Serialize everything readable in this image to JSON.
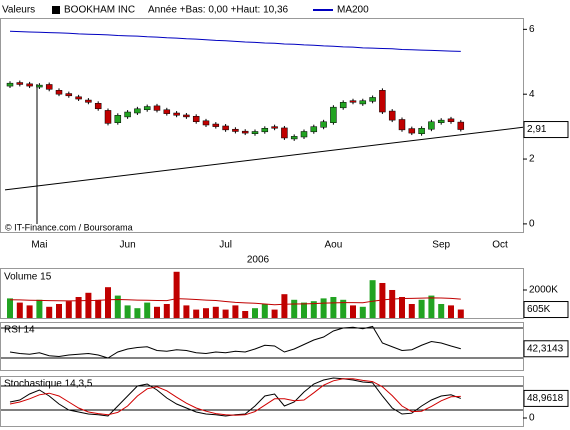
{
  "chart_data": [
    {
      "type": "candlestick",
      "label": "Valeurs",
      "title": "BOOKHAM INC",
      "subtitle": "Année +Bas: 0,00 +Haut: 10,36",
      "source": "© IT-Finance.com / Boursorama",
      "x_label": "2006",
      "categories": [
        null,
        null,
        null,
        "Mai",
        null,
        null,
        null,
        null,
        null,
        null,
        null,
        null,
        "Jun",
        null,
        null,
        null,
        null,
        null,
        null,
        null,
        null,
        null,
        "Jul",
        null,
        null,
        null,
        null,
        null,
        null,
        null,
        null,
        null,
        null,
        "Aou",
        null,
        null,
        null,
        null,
        null,
        null,
        null,
        null,
        null,
        null,
        "Sep",
        null,
        null,
        null,
        null,
        null,
        "Oct"
      ],
      "open": [
        4.25,
        4.36,
        4.32,
        4.22,
        4.3,
        4.12,
        4.02,
        3.92,
        3.82,
        3.72,
        3.5,
        3.12,
        3.3,
        3.42,
        3.52,
        3.64,
        3.52,
        3.42,
        3.36,
        3.32,
        3.18,
        3.08,
        3.02,
        2.92,
        2.86,
        2.78,
        2.84,
        3.0,
        2.96,
        2.62,
        2.68,
        2.84,
        2.98,
        3.12,
        3.58,
        3.8,
        3.7,
        3.78,
        4.12,
        3.48,
        3.22,
        2.94,
        2.78,
        2.92,
        3.12,
        3.24,
        3.14,
        null,
        null,
        null,
        null
      ],
      "high": [
        4.4,
        4.42,
        4.38,
        4.34,
        4.36,
        4.18,
        4.08,
        3.98,
        3.88,
        3.78,
        3.56,
        3.41,
        3.51,
        3.61,
        3.68,
        3.7,
        3.58,
        3.48,
        3.42,
        3.38,
        3.24,
        3.14,
        3.08,
        2.98,
        2.92,
        2.91,
        3.01,
        3.06,
        3.02,
        2.76,
        2.91,
        3.06,
        3.21,
        3.66,
        3.81,
        3.86,
        3.86,
        3.96,
        4.18,
        3.54,
        3.28,
        3.0,
        3.01,
        3.21,
        3.26,
        3.3,
        3.2,
        null,
        null,
        null,
        null
      ],
      "low": [
        4.19,
        4.24,
        4.19,
        4.16,
        4.09,
        3.94,
        3.89,
        3.79,
        3.69,
        3.49,
        3.04,
        3.06,
        3.24,
        3.36,
        3.46,
        3.44,
        3.34,
        3.29,
        3.24,
        3.09,
        2.99,
        2.94,
        2.84,
        2.79,
        2.74,
        2.72,
        2.78,
        2.89,
        2.59,
        2.56,
        2.62,
        2.78,
        2.92,
        3.06,
        3.52,
        3.69,
        3.64,
        3.72,
        3.39,
        3.14,
        2.84,
        2.74,
        2.72,
        2.86,
        3.06,
        3.09,
        2.85,
        null,
        null,
        null,
        null
      ],
      "close": [
        4.34,
        4.3,
        4.25,
        4.28,
        4.15,
        4.0,
        3.95,
        3.85,
        3.75,
        3.55,
        3.1,
        3.35,
        3.45,
        3.55,
        3.62,
        3.5,
        3.4,
        3.35,
        3.3,
        3.15,
        3.05,
        3.0,
        2.9,
        2.85,
        2.8,
        2.85,
        2.95,
        2.95,
        2.65,
        2.7,
        2.85,
        3.0,
        3.15,
        3.6,
        3.75,
        3.75,
        3.8,
        3.9,
        3.45,
        3.2,
        2.9,
        2.8,
        2.95,
        3.15,
        3.2,
        3.15,
        2.91,
        null,
        null,
        null,
        null
      ],
      "value_labels": [
        null,
        null,
        null,
        null,
        null,
        null,
        null,
        null,
        null,
        null,
        null,
        null,
        null,
        null,
        null,
        null,
        null,
        null,
        null,
        null,
        null,
        null,
        null,
        null,
        null,
        null,
        null,
        null,
        null,
        null,
        null,
        null,
        null,
        null,
        null,
        null,
        null,
        null,
        null,
        null,
        null,
        null,
        null,
        null,
        null,
        null,
        "2,91",
        null,
        null,
        null,
        null
      ],
      "up_color": "#22a322",
      "down_color": "#c00000",
      "series": [
        {
          "name": "MA200",
          "color": "#0000c0",
          "values": [
            5.94,
            5.93,
            5.92,
            5.91,
            5.9,
            5.89,
            5.88,
            5.86,
            5.85,
            5.84,
            5.83,
            5.81,
            5.8,
            5.79,
            5.77,
            5.76,
            5.74,
            5.73,
            5.71,
            5.7,
            5.68,
            5.66,
            5.65,
            5.63,
            5.61,
            5.6,
            5.58,
            5.57,
            5.55,
            5.54,
            5.52,
            5.51,
            5.49,
            5.48,
            5.46,
            5.45,
            5.43,
            5.42,
            5.41,
            5.4,
            5.38,
            5.37,
            5.36,
            5.35,
            5.34,
            5.33,
            5.32,
            null,
            null,
            null,
            null
          ]
        }
      ],
      "trendline": {
        "values": [
          1.05,
          2.98
        ],
        "color": "#000000"
      },
      "ylim": [
        -0.25,
        6.35
      ],
      "yticks": [
        0,
        2,
        4,
        6
      ]
    },
    {
      "type": "bar",
      "title": "Volume 15",
      "values": [
        1400000,
        1100000,
        900000,
        1300000,
        800000,
        1000000,
        1200000,
        1500000,
        1800000,
        1300000,
        2200000,
        1600000,
        900000,
        700000,
        1100000,
        800000,
        1000000,
        3300000,
        900000,
        600000,
        700000,
        800000,
        600000,
        900000,
        500000,
        700000,
        1000000,
        600000,
        1700000,
        1300000,
        1100000,
        1200000,
        1400000,
        1500000,
        1300000,
        900000,
        800000,
        2700000,
        2500000,
        2000000,
        1500000,
        1000000,
        1300000,
        1600000,
        1000000,
        900000,
        605000,
        null,
        null,
        null,
        null
      ],
      "value_labels": [
        null,
        null,
        null,
        null,
        null,
        null,
        null,
        null,
        null,
        null,
        null,
        null,
        null,
        null,
        null,
        null,
        null,
        null,
        null,
        null,
        null,
        null,
        null,
        null,
        null,
        null,
        null,
        null,
        null,
        null,
        null,
        null,
        null,
        null,
        null,
        null,
        null,
        null,
        null,
        null,
        null,
        null,
        null,
        null,
        null,
        null,
        "605K",
        null,
        null,
        null,
        null
      ],
      "series": [
        {
          "color": "#c00000",
          "values": [
            1300000,
            1290000,
            1270000,
            1260000,
            1240000,
            1230000,
            1220000,
            1230000,
            1250000,
            1260000,
            1300000,
            1320000,
            1300000,
            1280000,
            1270000,
            1250000,
            1240000,
            1380000,
            1360000,
            1320000,
            1280000,
            1250000,
            1180000,
            1120000,
            1080000,
            1050000,
            1000000,
            950000,
            980000,
            1000000,
            1010000,
            1030000,
            1060000,
            1080000,
            1100000,
            1100000,
            1090000,
            1200000,
            1290000,
            1350000,
            1390000,
            1400000,
            1420000,
            1440000,
            1430000,
            1400000,
            1350000,
            null,
            null,
            null,
            null
          ]
        }
      ],
      "ylim": [
        0,
        3570000
      ],
      "yticks": [
        {
          "value": 2000000,
          "label": "2000K"
        }
      ]
    },
    {
      "type": "line",
      "title": "RSI 14",
      "color": "#000000",
      "values": [
        38,
        36,
        35,
        37,
        33,
        32,
        34,
        35,
        36,
        34,
        30,
        38,
        42,
        44,
        45,
        40,
        39,
        41,
        40,
        37,
        36,
        38,
        37,
        39,
        38,
        42,
        47,
        46,
        38,
        42,
        48,
        54,
        58,
        66,
        70,
        71,
        69,
        72,
        50,
        45,
        40,
        41,
        47,
        52,
        50,
        46,
        42.3143,
        null,
        null,
        null,
        null
      ],
      "value_labels": [
        null,
        null,
        null,
        null,
        null,
        null,
        null,
        null,
        null,
        null,
        null,
        null,
        null,
        null,
        null,
        null,
        null,
        null,
        null,
        null,
        null,
        null,
        null,
        null,
        null,
        null,
        null,
        null,
        null,
        null,
        null,
        null,
        null,
        null,
        null,
        null,
        null,
        null,
        null,
        null,
        null,
        null,
        null,
        null,
        null,
        null,
        "42,3143",
        null,
        null,
        null,
        null
      ],
      "levels": [
        30,
        70
      ],
      "ylim": [
        16.7,
        75.3
      ]
    },
    {
      "type": "line",
      "title": "Stochastique 14,3,5",
      "series": [
        {
          "color": "#000000",
          "values": [
            40,
            45,
            60,
            70,
            55,
            35,
            20,
            15,
            10,
            8,
            5,
            30,
            55,
            80,
            85,
            70,
            50,
            35,
            25,
            15,
            10,
            8,
            5,
            8,
            10,
            30,
            55,
            60,
            30,
            40,
            65,
            85,
            95,
            100,
            98,
            95,
            90,
            88,
            55,
            25,
            10,
            12,
            30,
            45,
            55,
            58,
            48.9618,
            null,
            null,
            null,
            null
          ],
          "value_labels": [
            null,
            null,
            null,
            null,
            null,
            null,
            null,
            null,
            null,
            null,
            null,
            null,
            null,
            null,
            null,
            null,
            null,
            null,
            null,
            null,
            null,
            null,
            null,
            null,
            null,
            null,
            null,
            null,
            null,
            null,
            null,
            null,
            null,
            null,
            null,
            null,
            null,
            null,
            null,
            null,
            null,
            null,
            null,
            null,
            null,
            null,
            "48,9618",
            null,
            null,
            null,
            null
          ]
        },
        {
          "color": "#d00000",
          "values": [
            35,
            40,
            48,
            58,
            62,
            55,
            40,
            25,
            15,
            11,
            8,
            14,
            30,
            55,
            73,
            78,
            68,
            52,
            37,
            25,
            17,
            11,
            8,
            7,
            8,
            16,
            32,
            48,
            48,
            43,
            45,
            63,
            82,
            93,
            98,
            98,
            94,
            91,
            78,
            56,
            30,
            16,
            17,
            29,
            43,
            53,
            54,
            null,
            null,
            null,
            null
          ]
        }
      ],
      "levels": [
        20,
        80
      ],
      "ylim": [
        0,
        100
      ],
      "yticks": [
        0
      ]
    }
  ]
}
